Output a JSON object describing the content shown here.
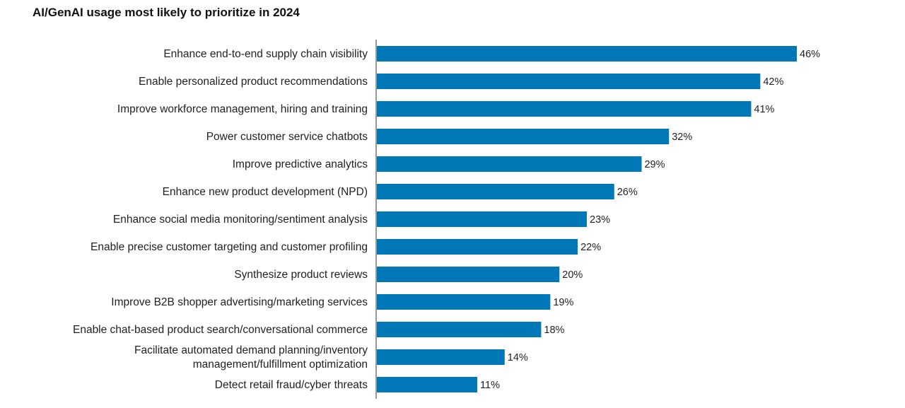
{
  "chart_data": {
    "type": "bar",
    "orientation": "horizontal",
    "title": "AI/GenAI usage most likely to prioritize in 2024",
    "categories": [
      "Enhance end-to-end supply chain visibility",
      "Enable personalized product recommendations",
      "Improve workforce management, hiring and training",
      "Power customer service chatbots",
      "Improve predictive analytics",
      "Enhance new product development (NPD)",
      "Enhance social media monitoring/sentiment analysis",
      "Enable precise customer targeting and customer profiling",
      "Synthesize product reviews",
      "Improve B2B shopper advertising/marketing services",
      "Enable chat-based product search/conversational commerce",
      "Facilitate automated demand planning/inventory management/fulfillment optimization",
      "Detect retail fraud/cyber threats"
    ],
    "category_lines": [
      [
        "Enhance end-to-end supply chain visibility"
      ],
      [
        "Enable personalized product recommendations"
      ],
      [
        "Improve workforce management, hiring and training"
      ],
      [
        "Power customer service chatbots"
      ],
      [
        "Improve predictive analytics"
      ],
      [
        "Enhance new product development (NPD)"
      ],
      [
        "Enhance social media monitoring/sentiment analysis"
      ],
      [
        "Enable precise customer targeting and customer profiling"
      ],
      [
        "Synthesize product reviews"
      ],
      [
        "Improve B2B shopper advertising/marketing services"
      ],
      [
        "Enable chat-based product search/conversational commerce"
      ],
      [
        "Facilitate automated demand planning/inventory",
        "management/fulfillment optimization"
      ],
      [
        "Detect retail fraud/cyber threats"
      ]
    ],
    "values": [
      46,
      42,
      41,
      32,
      29,
      26,
      23,
      22,
      20,
      19,
      18,
      14,
      11
    ],
    "value_labels": [
      "46%",
      "42%",
      "41%",
      "32%",
      "29%",
      "26%",
      "23%",
      "22%",
      "20%",
      "19%",
      "18%",
      "14%",
      "11%"
    ],
    "unit": "%",
    "xlim": [
      0,
      46
    ],
    "grid": false,
    "legend": "none",
    "bar_color": "#0077b6",
    "axis_color": "#333333"
  }
}
